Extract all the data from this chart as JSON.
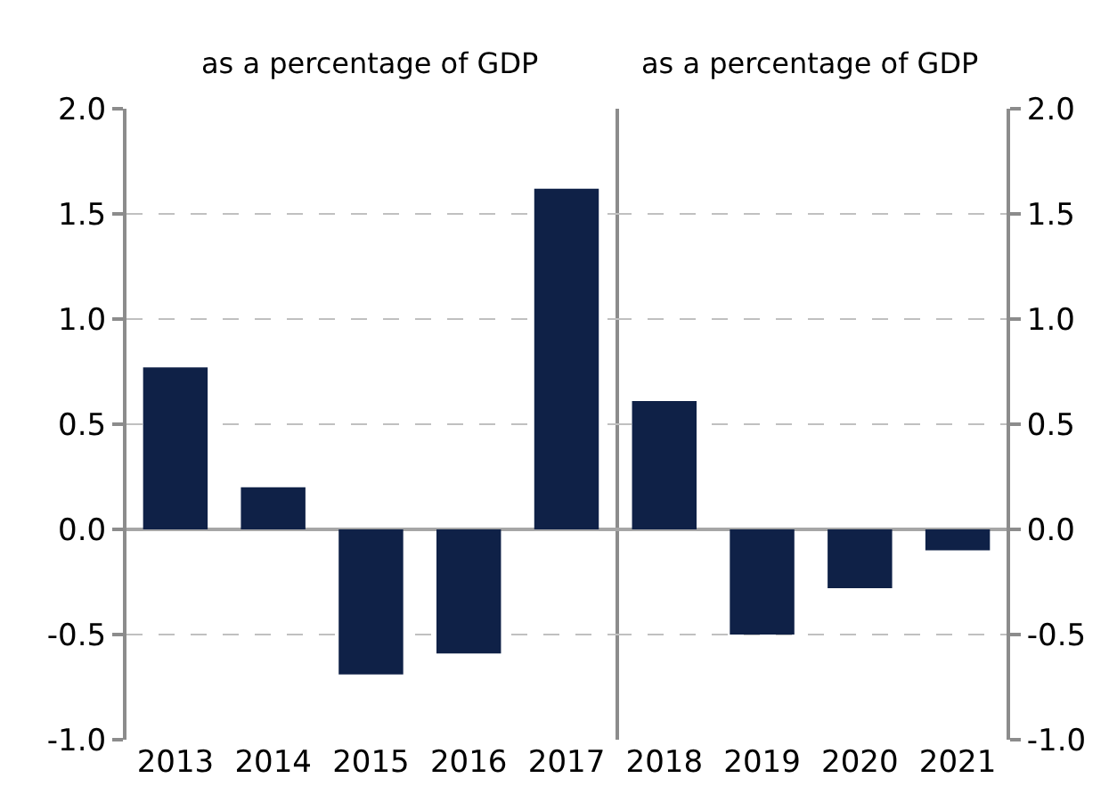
{
  "chart_data": [
    {
      "type": "bar",
      "title": "as a percentage of GDP",
      "categories": [
        "2013",
        "2014",
        "2015",
        "2016",
        "2017"
      ],
      "series": [
        {
          "color": "#0f2147",
          "values": [
            0.77,
            0.2,
            -0.69,
            -0.59,
            1.62
          ]
        }
      ],
      "ylim": [
        -1.0,
        2.0
      ],
      "yticks": [
        {
          "value": -1,
          "label": "-1.0"
        },
        {
          "value": -0.5,
          "label": "-0.5"
        },
        {
          "value": 0,
          "label": "0.0"
        },
        {
          "value": 0.5,
          "label": "0.5"
        },
        {
          "value": 1,
          "label": "1.0"
        },
        {
          "value": 1.5,
          "label": "1.5"
        },
        {
          "value": 2,
          "label": "2.0"
        }
      ],
      "grid": "y"
    },
    {
      "type": "bar",
      "title": "as a percentage of GDP",
      "categories": [
        "2018",
        "2019",
        "2020",
        "2021"
      ],
      "series": [
        {
          "color": "#0f2147",
          "values": [
            0.61,
            -0.5,
            -0.28,
            -0.1
          ],
          "axis": "y2"
        }
      ],
      "y2lim": [
        -1.0,
        2.0
      ],
      "y2ticks": [
        {
          "value": -1,
          "label": "-1.0"
        },
        {
          "value": -0.5,
          "label": "-0.5"
        },
        {
          "value": 0,
          "label": "0.0"
        },
        {
          "value": 0.5,
          "label": "0.5"
        },
        {
          "value": 1,
          "label": "1.0"
        },
        {
          "value": 1.5,
          "label": "1.5"
        },
        {
          "value": 2,
          "label": "2.0"
        }
      ],
      "grid": "y"
    }
  ]
}
